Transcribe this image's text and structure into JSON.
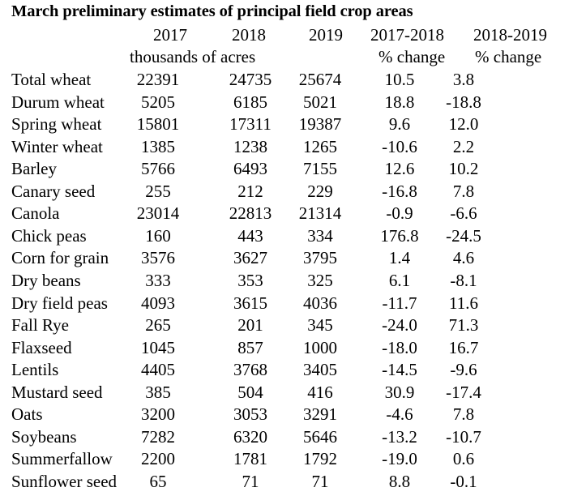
{
  "title": "March preliminary estimates of principal  field crop areas",
  "header": {
    "col_2017": "2017",
    "col_2018": "2018",
    "col_2019": "2019",
    "col_chg1": "2017-2018",
    "col_chg2": "2018-2019",
    "units_acres": "thousands of acres",
    "units_chg1": "% change",
    "units_chg2": "% change"
  },
  "rows": [
    {
      "crop": "Total wheat",
      "y2017": "22391",
      "y2018": "24735",
      "y2019": "25674",
      "chg1": "10.5",
      "chg2": "3.8"
    },
    {
      "crop": "Durum wheat",
      "y2017": "5205",
      "y2018": "6185",
      "y2019": "5021",
      "chg1": "18.8",
      "chg2": "-18.8"
    },
    {
      "crop": "Spring wheat",
      "y2017": "15801",
      "y2018": "17311",
      "y2019": "19387",
      "chg1": "9.6",
      "chg2": "12.0"
    },
    {
      "crop": "Winter wheat",
      "y2017": "1385",
      "y2018": "1238",
      "y2019": "1265",
      "chg1": "-10.6",
      "chg2": "2.2"
    },
    {
      "crop": "Barley",
      "y2017": "5766",
      "y2018": "6493",
      "y2019": "7155",
      "chg1": "12.6",
      "chg2": "10.2"
    },
    {
      "crop": "Canary seed",
      "y2017": "255",
      "y2018": "212",
      "y2019": "229",
      "chg1": "-16.8",
      "chg2": "7.8"
    },
    {
      "crop": "Canola",
      "y2017": "23014",
      "y2018": "22813",
      "y2019": "21314",
      "chg1": "-0.9",
      "chg2": "-6.6"
    },
    {
      "crop": "Chick peas",
      "y2017": "160",
      "y2018": "443",
      "y2019": "334",
      "chg1": "176.8",
      "chg2": "-24.5"
    },
    {
      "crop": "Corn for grain",
      "y2017": "3576",
      "y2018": "3627",
      "y2019": "3795",
      "chg1": "1.4",
      "chg2": "4.6"
    },
    {
      "crop": "Dry beans",
      "y2017": "333",
      "y2018": "353",
      "y2019": "325",
      "chg1": "6.1",
      "chg2": "-8.1"
    },
    {
      "crop": "Dry field peas",
      "y2017": "4093",
      "y2018": "3615",
      "y2019": "4036",
      "chg1": "-11.7",
      "chg2": "11.6"
    },
    {
      "crop": "Fall Rye",
      "y2017": "265",
      "y2018": "201",
      "y2019": "345",
      "chg1": "-24.0",
      "chg2": "71.3"
    },
    {
      "crop": "Flaxseed",
      "y2017": "1045",
      "y2018": "857",
      "y2019": "1000",
      "chg1": "-18.0",
      "chg2": "16.7"
    },
    {
      "crop": "Lentils",
      "y2017": "4405",
      "y2018": "3768",
      "y2019": "3405",
      "chg1": "-14.5",
      "chg2": "-9.6"
    },
    {
      "crop": "Mustard seed",
      "y2017": "385",
      "y2018": "504",
      "y2019": "416",
      "chg1": "30.9",
      "chg2": "-17.4"
    },
    {
      "crop": "Oats",
      "y2017": "3200",
      "y2018": "3053",
      "y2019": "3291",
      "chg1": "-4.6",
      "chg2": "7.8"
    },
    {
      "crop": "Soybeans",
      "y2017": "7282",
      "y2018": "6320",
      "y2019": "5646",
      "chg1": "-13.2",
      "chg2": "-10.7"
    },
    {
      "crop": "Summerfallow",
      "y2017": "2200",
      "y2018": "1781",
      "y2019": "1792",
      "chg1": "-19.0",
      "chg2": "0.6"
    },
    {
      "crop": "Sunflower seed",
      "y2017": "65",
      "y2018": "71",
      "y2019": "71",
      "chg1": "8.8",
      "chg2": "-0.1"
    }
  ]
}
